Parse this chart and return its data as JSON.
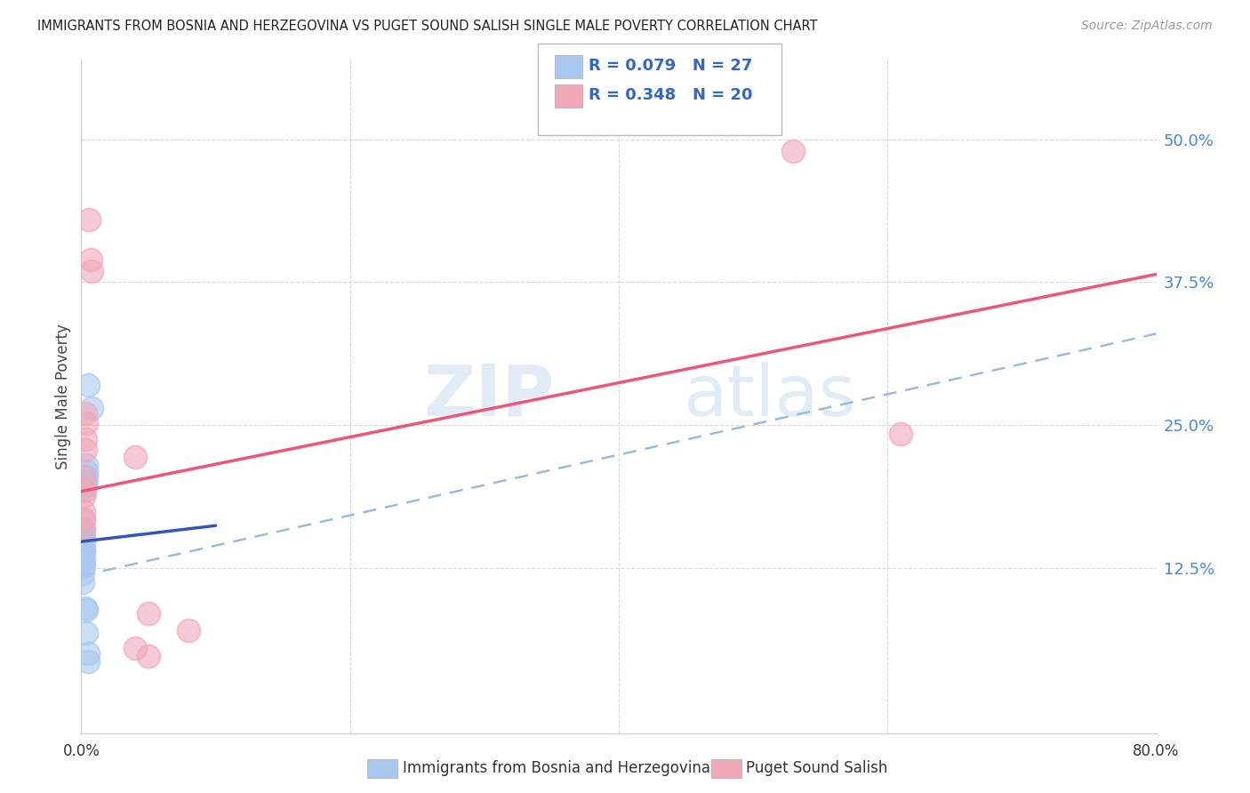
{
  "title": "IMMIGRANTS FROM BOSNIA AND HERZEGOVINA VS PUGET SOUND SALISH SINGLE MALE POVERTY CORRELATION CHART",
  "source": "Source: ZipAtlas.com",
  "ylabel": "Single Male Poverty",
  "watermark": "ZIPatlas",
  "xlim": [
    0.0,
    0.8
  ],
  "ylim": [
    -0.02,
    0.57
  ],
  "yticks_right": [
    0.125,
    0.25,
    0.375,
    0.5
  ],
  "ytick_labels_right": [
    "12.5%",
    "25.0%",
    "37.5%",
    "50.0%"
  ],
  "background_color": "#ffffff",
  "grid_color": "#d8d8d8",
  "blue_color": "#a8c8f0",
  "pink_color": "#f0a8b8",
  "blue_line_color": "#3355bb",
  "pink_line_color": "#ee5577",
  "dashed_line_color": "#99bbdd",
  "title_color": "#222222",
  "blue_scatter": [
    [
      0.005,
      0.285
    ],
    [
      0.008,
      0.265
    ],
    [
      0.004,
      0.215
    ],
    [
      0.004,
      0.205
    ],
    [
      0.003,
      0.198
    ],
    [
      0.003,
      0.193
    ],
    [
      0.003,
      0.2
    ],
    [
      0.004,
      0.21
    ],
    [
      0.002,
      0.168
    ],
    [
      0.002,
      0.158
    ],
    [
      0.002,
      0.153
    ],
    [
      0.002,
      0.148
    ],
    [
      0.002,
      0.142
    ],
    [
      0.002,
      0.138
    ],
    [
      0.002,
      0.132
    ],
    [
      0.002,
      0.126
    ],
    [
      0.001,
      0.155
    ],
    [
      0.001,
      0.148
    ],
    [
      0.001,
      0.14
    ],
    [
      0.001,
      0.13
    ],
    [
      0.001,
      0.12
    ],
    [
      0.001,
      0.112
    ],
    [
      0.003,
      0.09
    ],
    [
      0.004,
      0.088
    ],
    [
      0.004,
      0.068
    ],
    [
      0.005,
      0.05
    ],
    [
      0.005,
      0.043
    ]
  ],
  "pink_scatter": [
    [
      0.006,
      0.43
    ],
    [
      0.007,
      0.395
    ],
    [
      0.008,
      0.385
    ],
    [
      0.53,
      0.49
    ],
    [
      0.003,
      0.26
    ],
    [
      0.004,
      0.252
    ],
    [
      0.003,
      0.238
    ],
    [
      0.003,
      0.228
    ],
    [
      0.04,
      0.222
    ],
    [
      0.61,
      0.242
    ],
    [
      0.002,
      0.205
    ],
    [
      0.002,
      0.195
    ],
    [
      0.002,
      0.188
    ],
    [
      0.002,
      0.175
    ],
    [
      0.002,
      0.168
    ],
    [
      0.002,
      0.158
    ],
    [
      0.05,
      0.085
    ],
    [
      0.08,
      0.07
    ],
    [
      0.04,
      0.055
    ],
    [
      0.05,
      0.048
    ]
  ],
  "blue_line_x": [
    0.0,
    0.1
  ],
  "blue_line_y": [
    0.148,
    0.162
  ],
  "pink_line_x": [
    0.0,
    0.8
  ],
  "pink_line_y": [
    0.192,
    0.382
  ],
  "dashed_line_x": [
    0.0,
    0.8
  ],
  "dashed_line_y": [
    0.118,
    0.33
  ]
}
